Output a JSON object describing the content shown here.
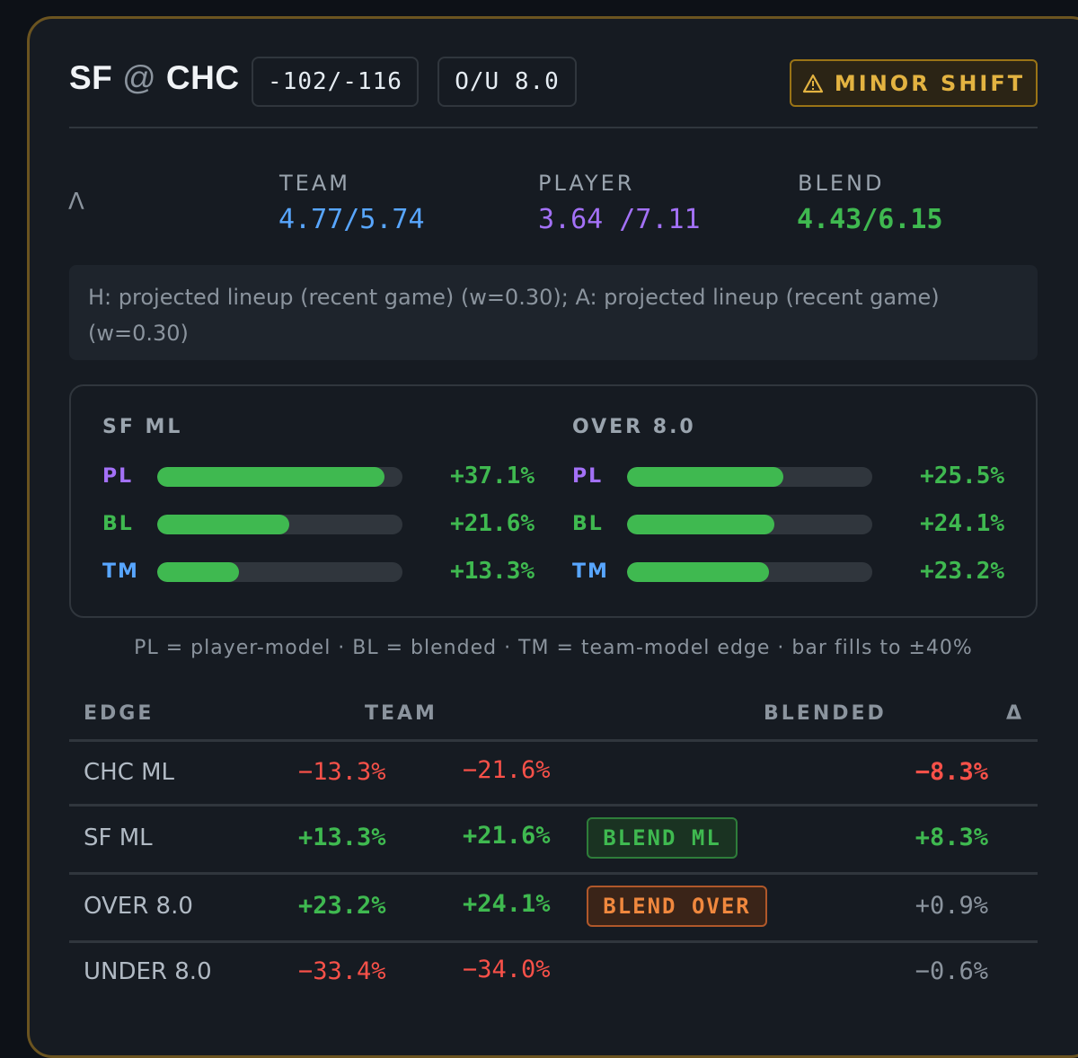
{
  "header": {
    "team_away": "SF",
    "at_sign": "@",
    "team_home": "CHC",
    "moneyline": "-102/-116",
    "total": "O/U 8.0",
    "shift_badge": "MINOR SHIFT",
    "shift_icon": "warning-icon"
  },
  "models": {
    "lambda_symbol": "Λ",
    "team_label": "TEAM",
    "team_value": "4.77/5.74",
    "player_label": "PLAYER",
    "player_value": "3.64 /7.11",
    "blend_label": "BLEND",
    "blend_value": "4.43/6.15"
  },
  "note": "H: projected lineup (recent game) (w=0.30); A: projected lineup (recent game) (w=0.30)",
  "edge_bars": {
    "max_abs_percent": 40,
    "groups": [
      {
        "title": "SF ML",
        "rows": [
          {
            "label": "PL",
            "value_text": "+37.1%",
            "value": 37.1
          },
          {
            "label": "BL",
            "value_text": "+21.6%",
            "value": 21.6
          },
          {
            "label": "TM",
            "value_text": "+13.3%",
            "value": 13.3
          }
        ]
      },
      {
        "title": "OVER 8.0",
        "rows": [
          {
            "label": "PL",
            "value_text": "+25.5%",
            "value": 25.5
          },
          {
            "label": "BL",
            "value_text": "+24.1%",
            "value": 24.1
          },
          {
            "label": "TM",
            "value_text": "+23.2%",
            "value": 23.2
          }
        ]
      }
    ],
    "legend": "PL = player-model · BL = blended · TM = team-model edge · bar fills to ±40%"
  },
  "table": {
    "headers": {
      "edge": "EDGE",
      "team": "TEAM",
      "blended": "BLENDED",
      "delta": "Δ"
    },
    "rows": [
      {
        "name": "CHC ML",
        "team": "−13.3%",
        "blended": "−21.6%",
        "tag": "",
        "delta": "−8.3%"
      },
      {
        "name": "SF ML",
        "team": "+13.3%",
        "blended": "+21.6%",
        "tag": "BLEND ML",
        "delta": "+8.3%"
      },
      {
        "name": "OVER 8.0",
        "team": "+23.2%",
        "blended": "+24.1%",
        "tag": "BLEND OVER",
        "delta": "+0.9%"
      },
      {
        "name": "UNDER 8.0",
        "team": "−33.4%",
        "blended": "−34.0%",
        "tag": "",
        "delta": "−0.6%"
      }
    ]
  },
  "colors": {
    "positive": "#3fb950",
    "negative": "#f85149",
    "player": "#a371f7",
    "team": "#58a6ff",
    "warning": "#e3b341",
    "neutral": "#8b949e"
  }
}
